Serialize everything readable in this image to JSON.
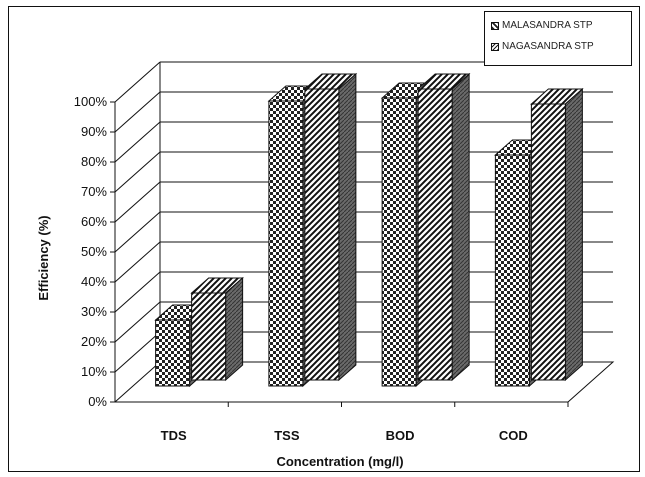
{
  "chart_data": {
    "type": "bar",
    "categories": [
      "TDS",
      "TSS",
      "BOD",
      "COD"
    ],
    "series": [
      {
        "name": "MALASANDRA STP",
        "values": [
          22,
          95,
          96,
          77
        ]
      },
      {
        "name": "NAGASANDRA STP",
        "values": [
          29,
          97,
          97,
          92
        ]
      }
    ],
    "xlabel": "Concentration (mg/l)",
    "ylabel": "Efficiency (%)",
    "ylim": [
      0,
      100
    ],
    "yticks": [
      "0%",
      "10%",
      "20%",
      "30%",
      "40%",
      "50%",
      "60%",
      "70%",
      "80%",
      "90%",
      "100%"
    ],
    "grid": true,
    "legend_position": "top-right",
    "style": "3d-clustered-column"
  }
}
